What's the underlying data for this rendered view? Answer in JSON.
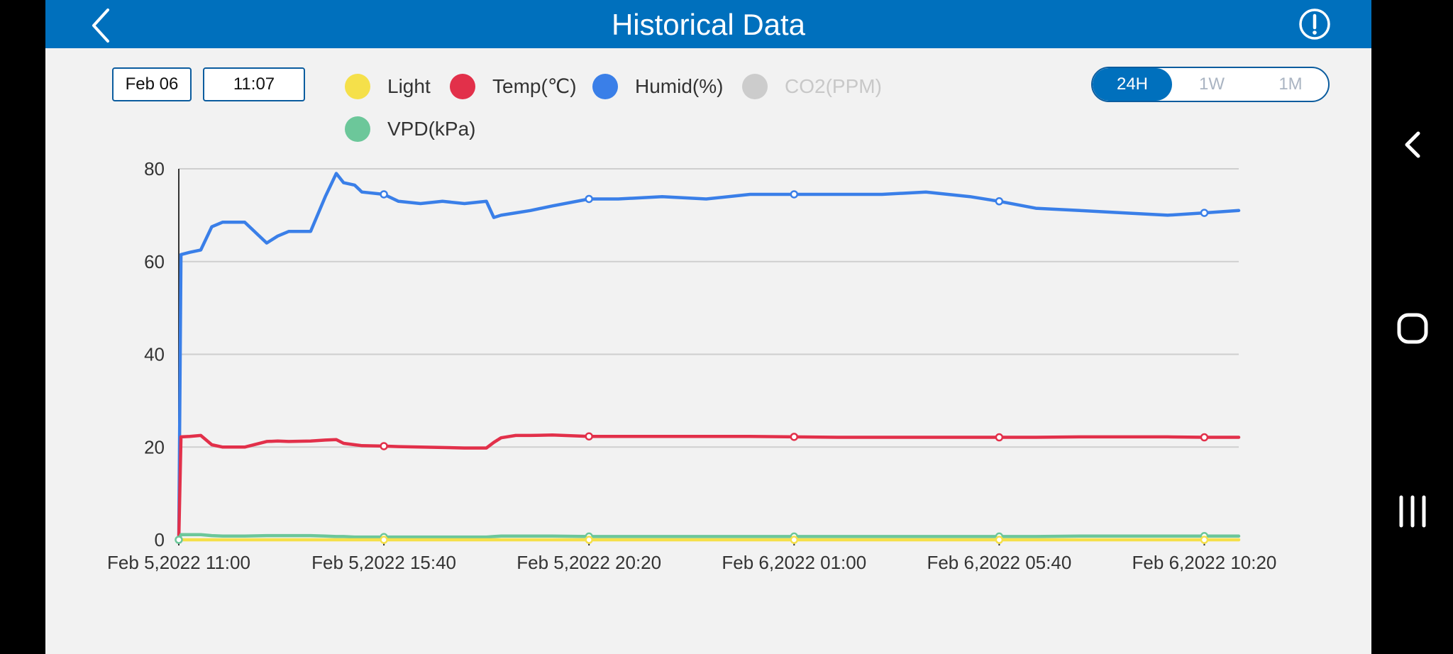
{
  "header": {
    "title": "Historical Data",
    "back_icon": "back-chevron-icon",
    "info_icon": "info-circle-icon"
  },
  "filters": {
    "date": "Feb 06",
    "time": "11:07"
  },
  "range_toggle": {
    "options": [
      "24H",
      "1W",
      "1M"
    ],
    "selected": "24H"
  },
  "legend": [
    {
      "label": "Light",
      "color": "#f5e04a",
      "active": true
    },
    {
      "label": "Temp(℃)",
      "color": "#e2304a",
      "active": true
    },
    {
      "label": "Humid(%)",
      "color": "#3a7fe8",
      "active": true
    },
    {
      "label": "CO2(PPM)",
      "color": "#cccccc",
      "active": false
    },
    {
      "label": "VPD(kPa)",
      "color": "#6cc79a",
      "active": true
    }
  ],
  "android_nav": {
    "icons": [
      "nav-back-icon",
      "nav-home-icon",
      "nav-recents-icon"
    ]
  },
  "chart_data": {
    "type": "line",
    "title": "",
    "xlabel": "",
    "ylabel": "",
    "ylim": [
      0,
      80
    ],
    "yticks": [
      0,
      20,
      40,
      60,
      80
    ],
    "xlim": [
      "2022-02-05 11:00",
      "2022-02-06 11:07"
    ],
    "xticks": [
      "Feb 5,2022 11:00",
      "Feb 5,2022 15:40",
      "Feb 5,2022 20:20",
      "Feb 6,2022 01:00",
      "Feb 6,2022 05:40",
      "Feb 6,2022 10:20"
    ],
    "grid": true,
    "x": [
      "2022-02-05 11:00",
      "2022-02-05 11:03",
      "2022-02-05 11:15",
      "2022-02-05 11:30",
      "2022-02-05 11:45",
      "2022-02-05 12:00",
      "2022-02-05 12:10",
      "2022-02-05 12:30",
      "2022-02-05 13:00",
      "2022-02-05 13:15",
      "2022-02-05 13:30",
      "2022-02-05 14:00",
      "2022-02-05 14:20",
      "2022-02-05 14:35",
      "2022-02-05 14:45",
      "2022-02-05 15:00",
      "2022-02-05 15:10",
      "2022-02-05 15:40",
      "2022-02-05 16:00",
      "2022-02-05 16:30",
      "2022-02-05 17:00",
      "2022-02-05 17:30",
      "2022-02-05 18:00",
      "2022-02-05 18:10",
      "2022-02-05 18:20",
      "2022-02-05 18:40",
      "2022-02-05 19:00",
      "2022-02-05 19:30",
      "2022-02-05 20:20",
      "2022-02-05 21:00",
      "2022-02-05 22:00",
      "2022-02-05 23:00",
      "2022-02-06 00:00",
      "2022-02-06 01:00",
      "2022-02-06 02:00",
      "2022-02-06 03:00",
      "2022-02-06 04:00",
      "2022-02-06 05:00",
      "2022-02-06 05:40",
      "2022-02-06 06:30",
      "2022-02-06 07:30",
      "2022-02-06 08:30",
      "2022-02-06 09:30",
      "2022-02-06 10:20",
      "2022-02-06 11:07"
    ],
    "series": [
      {
        "name": "Humid(%)",
        "color": "#3a7fe8",
        "values": [
          0,
          61.5,
          62,
          62.5,
          67.5,
          68.5,
          68.5,
          68.5,
          64,
          65.5,
          66.5,
          66.5,
          74,
          79,
          77,
          76.5,
          75,
          74.5,
          73,
          72.5,
          73,
          72.5,
          73,
          69.5,
          70,
          70.5,
          71,
          72,
          73.5,
          73.5,
          74,
          73.5,
          74.5,
          74.5,
          74.5,
          74.5,
          75,
          74,
          73,
          71.5,
          71,
          70.5,
          70,
          70.5,
          71
        ]
      },
      {
        "name": "Temp(℃)",
        "color": "#e2304a",
        "values": [
          0,
          22.2,
          22.3,
          22.5,
          20.5,
          20,
          20,
          20,
          21.2,
          21.3,
          21.2,
          21.3,
          21.5,
          21.6,
          20.8,
          20.5,
          20.3,
          20.2,
          20.1,
          20,
          19.9,
          19.8,
          19.8,
          21,
          22,
          22.5,
          22.5,
          22.6,
          22.3,
          22.3,
          22.3,
          22.3,
          22.3,
          22.2,
          22.1,
          22.1,
          22.1,
          22.1,
          22.1,
          22.1,
          22.2,
          22.2,
          22.2,
          22.1,
          22.1
        ]
      },
      {
        "name": "VPD(kPa)",
        "color": "#6cc79a",
        "values": [
          0,
          1.1,
          1.1,
          1.1,
          0.9,
          0.8,
          0.8,
          0.8,
          0.9,
          0.9,
          0.9,
          0.9,
          0.8,
          0.7,
          0.7,
          0.6,
          0.6,
          0.6,
          0.6,
          0.6,
          0.6,
          0.6,
          0.6,
          0.7,
          0.8,
          0.8,
          0.8,
          0.8,
          0.7,
          0.7,
          0.7,
          0.7,
          0.7,
          0.7,
          0.7,
          0.7,
          0.7,
          0.7,
          0.7,
          0.7,
          0.8,
          0.8,
          0.8,
          0.8,
          0.8
        ]
      },
      {
        "name": "Light",
        "color": "#f5e04a",
        "values": [
          0,
          0,
          0,
          0,
          0,
          0,
          0,
          0,
          0,
          0,
          0,
          0,
          0,
          0,
          0,
          0,
          0,
          0,
          0,
          0,
          0,
          0,
          0,
          0,
          0,
          0,
          0,
          0,
          0,
          0,
          0,
          0,
          0,
          0,
          0,
          0,
          0,
          0,
          0,
          0,
          0,
          0,
          0,
          0,
          0
        ]
      }
    ],
    "markers_at": [
      "2022-02-05 15:40",
      "2022-02-05 20:20",
      "2022-02-06 01:00",
      "2022-02-06 05:40",
      "2022-02-06 10:20"
    ]
  }
}
